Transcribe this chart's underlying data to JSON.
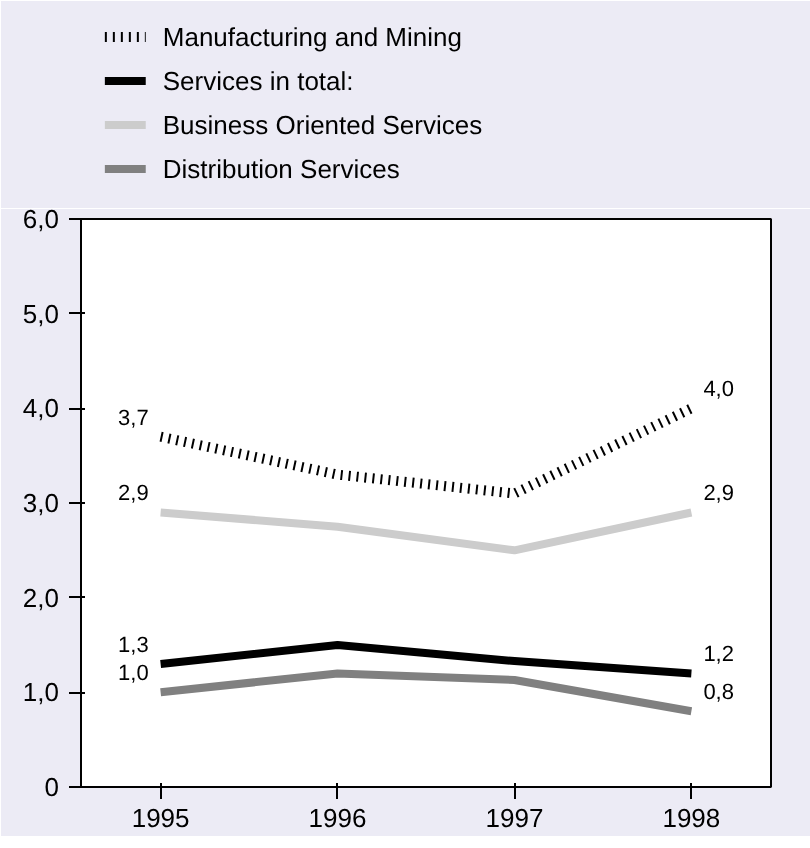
{
  "chart_data": {
    "type": "line",
    "categories": [
      "1995",
      "1996",
      "1997",
      "1998"
    ],
    "series": [
      {
        "name": "Manufacturing and Mining",
        "color": "#000000",
        "line_style": "dotted",
        "values": [
          3.7,
          3.3,
          3.1,
          4.0
        ],
        "value_labels": [
          "3,7",
          null,
          null,
          "4,0"
        ]
      },
      {
        "name": "Services in total:",
        "color": "#000000",
        "line_style": "solid",
        "values": [
          1.3,
          1.5,
          1.33,
          1.2
        ],
        "value_labels": [
          "1,3",
          null,
          null,
          "1,2"
        ]
      },
      {
        "name": "Business Oriented Services",
        "color": "#cccccc",
        "line_style": "solid",
        "values": [
          2.9,
          2.75,
          2.5,
          2.9
        ],
        "value_labels": [
          "2,9",
          null,
          null,
          "2,9"
        ]
      },
      {
        "name": "Distribution Services",
        "color": "#808080",
        "line_style": "solid",
        "values": [
          1.0,
          1.2,
          1.13,
          0.8
        ],
        "value_labels": [
          "1,0",
          null,
          null,
          "0,8"
        ]
      }
    ],
    "ylim": [
      0,
      6
    ],
    "yticks": [
      0,
      {
        "value": 1,
        "label": "1,0"
      },
      {
        "value": 2,
        "label": "2,0"
      },
      {
        "value": 3,
        "label": "3,0"
      },
      {
        "value": 4,
        "label": "4,0"
      },
      {
        "value": 5,
        "label": "5,0"
      },
      {
        "value": 6,
        "label": "6,0"
      }
    ],
    "grid": false,
    "legend": "top",
    "marker": "none"
  }
}
